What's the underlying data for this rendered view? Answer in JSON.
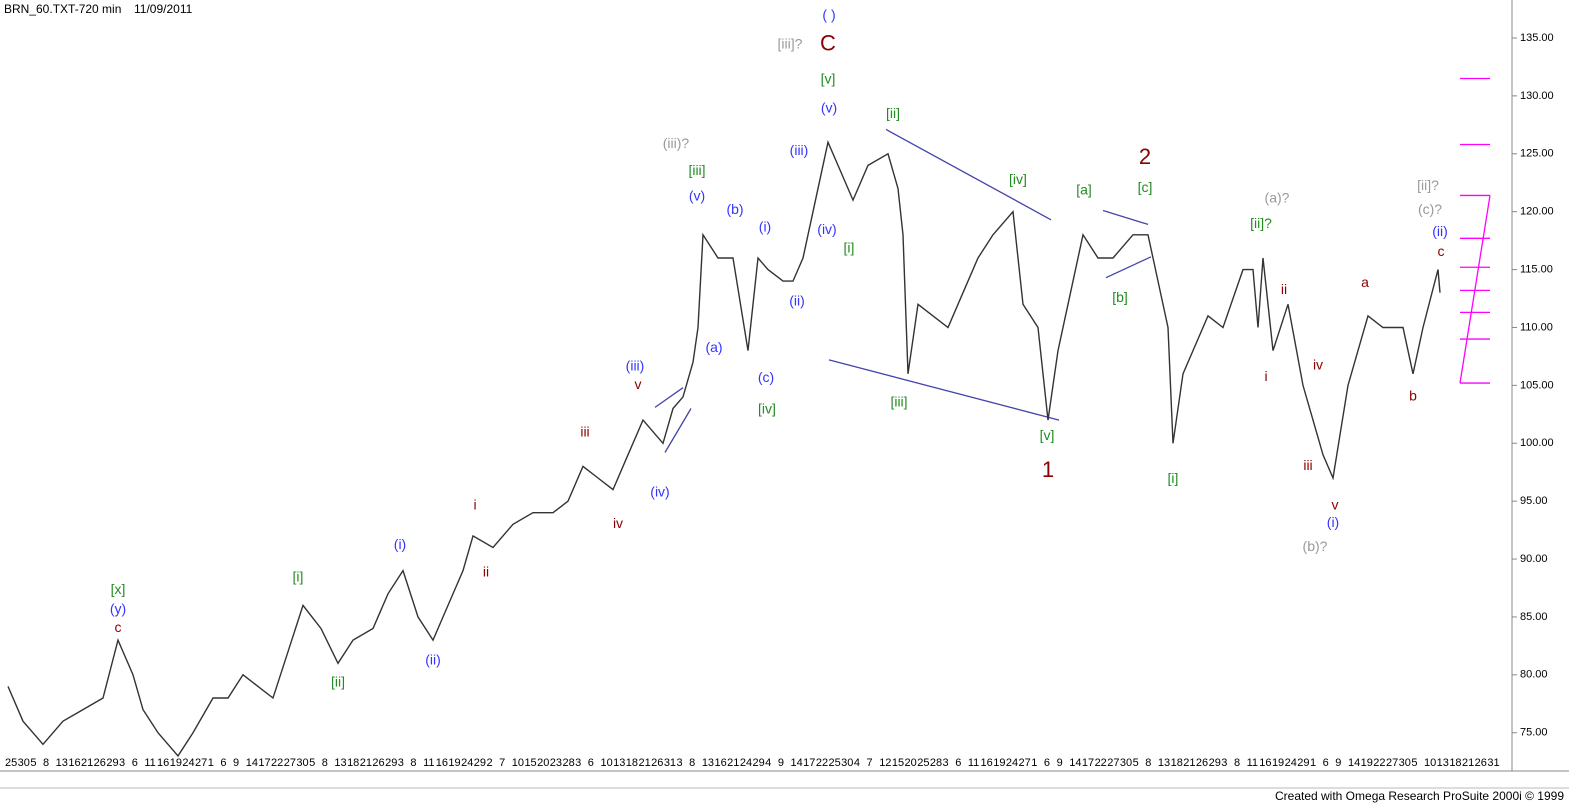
{
  "chart_data": {
    "type": "line",
    "title": "BRN_60.TXT-720 min",
    "subtitle": "11/09/2011",
    "footer": "Created with Omega Research ProSuite 2000i © 1999",
    "xlim": [
      0,
      1510
    ],
    "ylim": [
      73.25,
      138.28
    ],
    "yticks": [
      {
        "value": 75,
        "label": "75.00"
      },
      {
        "value": 80,
        "label": "80.00"
      },
      {
        "value": 85,
        "label": "85.00"
      },
      {
        "value": 90,
        "label": "90.00"
      },
      {
        "value": 95,
        "label": "95.00"
      },
      {
        "value": 100,
        "label": "100.00"
      },
      {
        "value": 105,
        "label": "105.00"
      },
      {
        "value": 110,
        "label": "110.00"
      },
      {
        "value": 115,
        "label": "115.00"
      },
      {
        "value": 120,
        "label": "120.00"
      },
      {
        "value": 125,
        "label": "125.00"
      },
      {
        "value": 130,
        "label": "130.00"
      },
      {
        "value": 135,
        "label": "135.00"
      }
    ],
    "xtick_labels": [
      "25",
      "30",
      "5",
      "8",
      "13",
      "16",
      "21",
      "26",
      "29",
      "3",
      "6",
      "11",
      "16",
      "19",
      "24",
      "27",
      "1",
      "6",
      "9",
      "14",
      "17",
      "22",
      "27",
      "30",
      "5",
      "8",
      "13",
      "18",
      "21",
      "26",
      "29",
      "3",
      "8",
      "11",
      "16",
      "19",
      "24",
      "29",
      "2",
      "7",
      "10",
      "15",
      "20",
      "23",
      "28",
      "3",
      "6",
      "10",
      "13",
      "18",
      "21",
      "26",
      "31",
      "3",
      "8",
      "13",
      "16",
      "21",
      "24",
      "29",
      "4",
      "9",
      "14",
      "17",
      "22",
      "25",
      "30",
      "4",
      "7",
      "12",
      "15",
      "20",
      "25",
      "28",
      "3",
      "6",
      "11",
      "16",
      "19",
      "24",
      "27",
      "1",
      "6",
      "9",
      "14",
      "17",
      "22",
      "27",
      "30",
      "5",
      "8",
      "13",
      "18",
      "21",
      "26",
      "29",
      "3",
      "8",
      "11",
      "16",
      "19",
      "24",
      "29",
      "1",
      "6",
      "9",
      "14",
      "19",
      "22",
      "27",
      "30",
      "5",
      "10",
      "13",
      "18",
      "21",
      "26",
      "31"
    ],
    "series": [
      {
        "color": "#333333",
        "x": [
          5,
          20,
          40,
          60,
          80,
          100,
          115,
          130,
          140,
          155,
          175,
          190,
          210,
          225,
          240,
          255,
          270,
          285,
          300,
          318,
          335,
          350,
          370,
          385,
          400,
          415,
          430,
          445,
          460,
          470,
          490,
          510,
          530,
          550,
          565,
          580,
          595,
          610,
          625,
          640,
          650,
          660,
          670,
          680,
          690,
          695,
          700,
          715,
          730,
          745,
          755,
          765,
          780,
          790,
          800,
          810,
          825,
          840,
          850,
          865,
          885,
          895,
          900,
          905,
          915,
          930,
          945,
          960,
          975,
          990,
          1010,
          1020,
          1035,
          1045,
          1055,
          1065,
          1080,
          1095,
          1110,
          1130,
          1145,
          1155,
          1165,
          1170,
          1180,
          1190,
          1205,
          1220,
          1240,
          1250,
          1255,
          1260,
          1270,
          1285,
          1300,
          1310,
          1320,
          1330,
          1345,
          1355,
          1365,
          1380,
          1400,
          1410,
          1420,
          1435,
          1437
        ],
        "values": [
          79,
          76,
          74,
          76,
          77,
          78,
          83,
          80,
          77,
          75,
          73,
          75,
          78,
          78,
          80,
          79,
          78,
          82,
          86,
          84,
          81,
          83,
          84,
          87,
          89,
          85,
          83,
          86,
          89,
          92,
          91,
          93,
          94,
          94,
          95,
          98,
          97,
          96,
          99,
          102,
          101,
          100,
          103,
          104,
          107,
          110,
          118,
          116,
          116,
          108,
          116,
          115,
          114,
          114,
          116,
          120,
          126,
          123,
          121,
          124,
          125,
          122,
          118,
          106,
          112,
          111,
          110,
          113,
          116,
          118,
          120,
          112,
          110,
          102,
          108,
          112,
          118,
          116,
          116,
          118,
          118,
          114,
          110,
          100,
          106,
          108,
          111,
          110,
          115,
          115,
          110,
          116,
          108,
          112,
          105,
          102,
          99,
          97,
          105,
          108,
          111,
          110,
          110,
          106,
          110,
          115,
          113
        ]
      }
    ],
    "annotations": [
      {
        "text": "[x]",
        "x": 115,
        "y": 87.3,
        "color": "#228b22"
      },
      {
        "text": "(y)",
        "x": 115,
        "y": 85.6,
        "color": "#3333ff"
      },
      {
        "text": "c",
        "x": 115,
        "y": 84.0,
        "color": "#8b0000"
      },
      {
        "text": "[i]",
        "x": 295,
        "y": 88.4,
        "color": "#228b22"
      },
      {
        "text": "[ii]",
        "x": 335,
        "y": 79.3,
        "color": "#228b22"
      },
      {
        "text": "(i)",
        "x": 397,
        "y": 91.2,
        "color": "#3333ff"
      },
      {
        "text": "(ii)",
        "x": 430,
        "y": 81.2,
        "color": "#3333ff"
      },
      {
        "text": "i",
        "x": 472,
        "y": 94.6,
        "color": "#8b0000"
      },
      {
        "text": "ii",
        "x": 483,
        "y": 88.8,
        "color": "#8b0000"
      },
      {
        "text": "iii",
        "x": 582,
        "y": 100.9,
        "color": "#8b0000"
      },
      {
        "text": "iv",
        "x": 615,
        "y": 93.0,
        "color": "#8b0000"
      },
      {
        "text": "v",
        "x": 635,
        "y": 105.0,
        "color": "#8b0000"
      },
      {
        "text": "(iii)",
        "x": 632,
        "y": 106.6,
        "color": "#3333ff"
      },
      {
        "text": "(iv)",
        "x": 657,
        "y": 95.7,
        "color": "#3333ff"
      },
      {
        "text": "(a)",
        "x": 711,
        "y": 108.2,
        "color": "#3333ff"
      },
      {
        "text": "(v)",
        "x": 694,
        "y": 121.3,
        "color": "#3333ff"
      },
      {
        "text": "[iii]",
        "x": 694,
        "y": 123.5,
        "color": "#228b22"
      },
      {
        "text": "(iii)?",
        "x": 673,
        "y": 125.8,
        "color": "#999999"
      },
      {
        "text": "(b)",
        "x": 732,
        "y": 120.1,
        "color": "#3333ff"
      },
      {
        "text": "(i)",
        "x": 762,
        "y": 118.6,
        "color": "#3333ff"
      },
      {
        "text": "(ii)",
        "x": 794,
        "y": 112.2,
        "color": "#3333ff"
      },
      {
        "text": "(c)",
        "x": 763,
        "y": 105.6,
        "color": "#3333ff"
      },
      {
        "text": "[iv]",
        "x": 764,
        "y": 102.9,
        "color": "#228b22"
      },
      {
        "text": "(iii)",
        "x": 796,
        "y": 125.2,
        "color": "#3333ff"
      },
      {
        "text": "(iv)",
        "x": 824,
        "y": 118.4,
        "color": "#3333ff"
      },
      {
        "text": "[i]",
        "x": 846,
        "y": 116.8,
        "color": "#228b22"
      },
      {
        "text": "(v)",
        "x": 826,
        "y": 128.9,
        "color": "#3333ff"
      },
      {
        "text": "[v]",
        "x": 825,
        "y": 131.4,
        "color": "#228b22"
      },
      {
        "text": "C",
        "x": 825,
        "y": 134.4,
        "color": "#8b0000",
        "large": true
      },
      {
        "text": "[iii]?",
        "x": 787,
        "y": 134.4,
        "color": "#999999"
      },
      {
        "text": "(   )",
        "x": 826,
        "y": 136.9,
        "color": "#3333ff"
      },
      {
        "text": "[ii]",
        "x": 890,
        "y": 128.4,
        "color": "#228b22"
      },
      {
        "text": "[iii]",
        "x": 896,
        "y": 103.5,
        "color": "#228b22"
      },
      {
        "text": "[iv]",
        "x": 1015,
        "y": 122.7,
        "color": "#228b22"
      },
      {
        "text": "[v]",
        "x": 1044,
        "y": 100.6,
        "color": "#228b22"
      },
      {
        "text": "1",
        "x": 1045,
        "y": 97.6,
        "color": "#8b0000",
        "large": true
      },
      {
        "text": "[a]",
        "x": 1081,
        "y": 121.8,
        "color": "#228b22"
      },
      {
        "text": "[b]",
        "x": 1117,
        "y": 112.5,
        "color": "#228b22"
      },
      {
        "text": "[c]",
        "x": 1142,
        "y": 122.0,
        "color": "#228b22"
      },
      {
        "text": "2",
        "x": 1142,
        "y": 124.6,
        "color": "#8b0000",
        "large": true
      },
      {
        "text": "[i]",
        "x": 1170,
        "y": 96.9,
        "color": "#228b22"
      },
      {
        "text": "(a)?",
        "x": 1274,
        "y": 121.1,
        "color": "#999999"
      },
      {
        "text": "[ii]?",
        "x": 1258,
        "y": 118.9,
        "color": "#228b22"
      },
      {
        "text": "ii",
        "x": 1281,
        "y": 113.2,
        "color": "#8b0000"
      },
      {
        "text": "i",
        "x": 1263,
        "y": 105.7,
        "color": "#8b0000"
      },
      {
        "text": "iv",
        "x": 1315,
        "y": 106.7,
        "color": "#8b0000"
      },
      {
        "text": "iii",
        "x": 1305,
        "y": 98.0,
        "color": "#8b0000"
      },
      {
        "text": "v",
        "x": 1332,
        "y": 94.6,
        "color": "#8b0000"
      },
      {
        "text": "(i)",
        "x": 1330,
        "y": 93.1,
        "color": "#3333ff"
      },
      {
        "text": "(b)?",
        "x": 1312,
        "y": 91.0,
        "color": "#999999"
      },
      {
        "text": "a",
        "x": 1362,
        "y": 113.8,
        "color": "#8b0000"
      },
      {
        "text": "b",
        "x": 1410,
        "y": 104.0,
        "color": "#8b0000"
      },
      {
        "text": "c",
        "x": 1438,
        "y": 116.5,
        "color": "#8b0000"
      },
      {
        "text": "(ii)",
        "x": 1437,
        "y": 118.2,
        "color": "#3333ff"
      },
      {
        "text": "(c)?",
        "x": 1427,
        "y": 120.1,
        "color": "#999999"
      },
      {
        "text": "[ii]?",
        "x": 1425,
        "y": 122.2,
        "color": "#999999"
      }
    ],
    "trendlines": [
      {
        "x": [
          883,
          1048
        ],
        "y": [
          127.1,
          119.3
        ],
        "color": "#4444aa"
      },
      {
        "x": [
          826,
          1056
        ],
        "y": [
          107.2,
          102.0
        ],
        "color": "#4444aa"
      },
      {
        "x": [
          652,
          680
        ],
        "y": [
          103.1,
          104.8
        ],
        "color": "#4444aa"
      },
      {
        "x": [
          662,
          688
        ],
        "y": [
          99.2,
          103.0
        ],
        "color": "#4444aa"
      },
      {
        "x": [
          1100,
          1145
        ],
        "y": [
          120.1,
          118.9
        ],
        "color": "#4444aa"
      },
      {
        "x": [
          1103,
          1148
        ],
        "y": [
          114.3,
          116.1
        ],
        "color": "#4444aa"
      }
    ],
    "levels": {
      "color": "#ff00ff",
      "values": [
        131.5,
        125.8,
        121.4,
        117.7,
        115.2,
        113.2,
        111.3,
        109.0,
        105.2
      ]
    }
  }
}
